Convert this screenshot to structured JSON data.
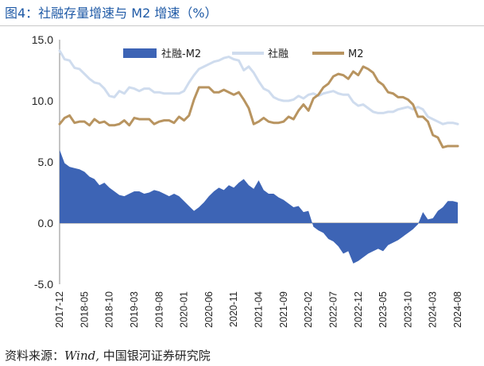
{
  "figure": {
    "title": "图4：社融存量增速与 M2 增速（%）",
    "source_prefix": "资料来源：",
    "source_wind": "Wind,",
    "source_suffix": " 中国银河证券研究院"
  },
  "chart_data": {
    "type": "line",
    "title": "图4：社融存量增速与 M2 增速（%）",
    "ylim": [
      -5,
      15
    ],
    "yticks": [
      "15.0",
      "10.0",
      "5.0",
      "0.0",
      "-5.0"
    ],
    "x_tick_labels": [
      "2017-12",
      "2018-05",
      "2018-10",
      "2019-03",
      "2019-08",
      "2020-01",
      "2020-06",
      "2020-11",
      "2021-04",
      "2021-09",
      "2022-02",
      "2022-07",
      "2022-12",
      "2023-05",
      "2023-10",
      "2024-03",
      "2024-08"
    ],
    "x_start": "2017-12",
    "legend_position": "top",
    "colors": {
      "diff": "#3d64b5",
      "tsf": "#cfdcee",
      "m2": "#b89460"
    },
    "series": [
      {
        "name": "社融-M2",
        "kind": "area",
        "values": [
          6.0,
          4.9,
          4.6,
          4.5,
          4.4,
          4.2,
          3.8,
          3.6,
          3.1,
          3.3,
          2.9,
          2.6,
          2.3,
          2.2,
          2.4,
          2.6,
          2.6,
          2.4,
          2.5,
          2.7,
          2.6,
          2.4,
          2.2,
          2.4,
          2.2,
          1.8,
          1.4,
          1.0,
          1.3,
          1.7,
          2.2,
          2.6,
          2.9,
          2.7,
          3.1,
          2.9,
          3.3,
          3.6,
          3.1,
          2.8,
          3.5,
          2.7,
          2.4,
          2.4,
          2.1,
          1.9,
          1.6,
          1.3,
          1.4,
          0.9,
          1.0,
          -0.3,
          -0.6,
          -0.8,
          -1.3,
          -1.5,
          -1.9,
          -2.5,
          -2.3,
          -3.3,
          -3.1,
          -2.8,
          -2.5,
          -2.3,
          -2.1,
          -2.3,
          -1.8,
          -1.6,
          -1.4,
          -1.1,
          -0.8,
          -0.5,
          -0.1,
          0.9,
          0.3,
          0.4,
          1.0,
          1.3,
          1.8,
          1.8,
          1.7
        ]
      },
      {
        "name": "社融",
        "kind": "line",
        "values": [
          14.1,
          13.4,
          13.3,
          12.7,
          12.6,
          12.2,
          11.8,
          11.5,
          11.4,
          11.0,
          10.4,
          10.3,
          10.8,
          10.6,
          11.1,
          11.0,
          10.8,
          11.0,
          11.0,
          10.7,
          10.7,
          10.6,
          10.6,
          10.6,
          10.6,
          10.8,
          11.5,
          12.1,
          12.6,
          12.8,
          13.0,
          13.2,
          13.3,
          13.5,
          13.6,
          13.4,
          13.3,
          12.5,
          12.8,
          12.3,
          11.6,
          11.0,
          10.8,
          10.3,
          10.1,
          10.0,
          10.0,
          10.1,
          10.4,
          10.2,
          10.5,
          10.6,
          10.4,
          10.6,
          10.7,
          10.8,
          10.6,
          10.5,
          10.5,
          9.9,
          9.6,
          9.7,
          9.4,
          9.1,
          9.0,
          9.0,
          9.1,
          9.1,
          9.3,
          9.4,
          9.5,
          9.3,
          9.5,
          9.3,
          8.7,
          8.5,
          8.3,
          8.1,
          8.2,
          8.2,
          8.1
        ]
      },
      {
        "name": "M2",
        "kind": "line",
        "values": [
          8.1,
          8.6,
          8.8,
          8.2,
          8.3,
          8.3,
          8.0,
          8.5,
          8.2,
          8.3,
          8.0,
          8.0,
          8.1,
          8.4,
          8.0,
          8.6,
          8.5,
          8.5,
          8.5,
          8.1,
          8.3,
          8.4,
          8.4,
          8.2,
          8.7,
          8.4,
          8.8,
          10.1,
          11.1,
          11.1,
          11.1,
          10.7,
          10.7,
          10.9,
          10.7,
          10.5,
          10.7,
          10.1,
          9.4,
          8.1,
          8.3,
          8.6,
          8.3,
          8.2,
          8.2,
          8.3,
          8.7,
          8.5,
          9.2,
          9.7,
          9.2,
          10.2,
          10.5,
          11.1,
          11.4,
          12.0,
          12.2,
          12.1,
          11.8,
          12.4,
          12.1,
          12.8,
          12.6,
          12.3,
          11.6,
          11.3,
          10.7,
          10.6,
          10.3,
          10.3,
          10.1,
          9.7,
          8.7,
          8.7,
          8.3,
          7.2,
          7.0,
          6.2,
          6.3,
          6.3,
          6.3
        ]
      }
    ]
  }
}
